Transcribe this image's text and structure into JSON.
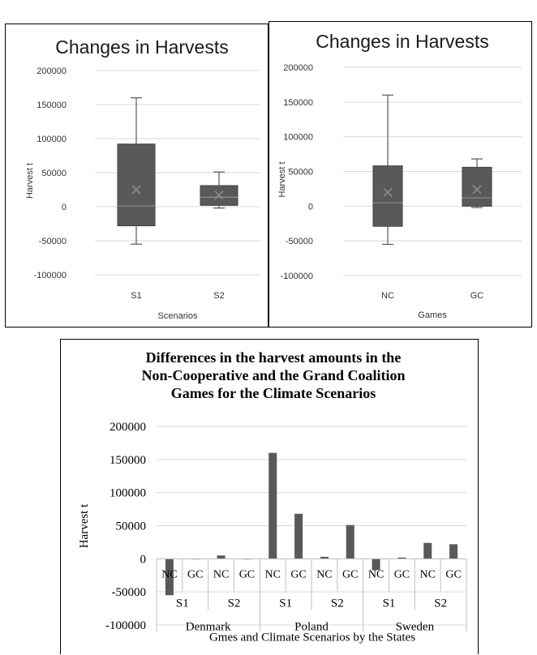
{
  "chart_data": [
    {
      "type": "box",
      "title": "Changes in Harvests",
      "xlabel": "Scenarios",
      "ylabel": "Harvest t",
      "ylim": [
        -100000,
        200000
      ],
      "yticks": [
        "200000",
        "150000",
        "100000",
        "50000",
        "0",
        "-50000",
        "-100000"
      ],
      "categories": [
        "S1",
        "S2"
      ],
      "boxes": [
        {
          "category": "S1",
          "min": -55000,
          "q1": -28000,
          "median": 1000,
          "q3": 92000,
          "max": 160000,
          "mean": 25000
        },
        {
          "category": "S2",
          "min": -2000,
          "q1": 2000,
          "median": 14000,
          "q3": 31000,
          "max": 51000,
          "mean": 17000
        }
      ]
    },
    {
      "type": "box",
      "title": "Changes in Harvests",
      "xlabel": "Games",
      "ylabel": "Harvest t",
      "ylim": [
        -100000,
        200000
      ],
      "yticks": [
        "200000",
        "150000",
        "100000",
        "50000",
        "0",
        "-50000",
        "-100000"
      ],
      "categories": [
        "NC",
        "GC"
      ],
      "boxes": [
        {
          "category": "NC",
          "min": -55000,
          "q1": -29000,
          "median": 5000,
          "q3": 58000,
          "max": 160000,
          "mean": 20000
        },
        {
          "category": "GC",
          "min": -2000,
          "q1": 0,
          "median": 12000,
          "q3": 56000,
          "max": 68000,
          "mean": 24000
        }
      ]
    },
    {
      "type": "bar",
      "title": [
        "Differences in the harvest amounts in the",
        "Non-Cooperative and the Grand Coalition",
        "Games for the Climate Scenarios"
      ],
      "xlabel": "Gmes and Climate Scenarios by the States",
      "ylabel": "Harvest t",
      "ylim": [
        -100000,
        200000
      ],
      "yticks": [
        "200000",
        "150000",
        "100000",
        "50000",
        "0",
        "-50000",
        "-100000"
      ],
      "states": [
        "Denmark",
        "Poland",
        "Sweden"
      ],
      "scenarios": [
        "S1",
        "S2"
      ],
      "games": [
        "NC",
        "GC"
      ],
      "categories": [
        "Denmark S1 NC",
        "Denmark S1 GC",
        "Denmark S2 NC",
        "Denmark S2 GC",
        "Poland S1 NC",
        "Poland S1 GC",
        "Poland S2 NC",
        "Poland S2 GC",
        "Sweden S1 NC",
        "Sweden S1 GC",
        "Sweden S2 NC",
        "Sweden S2 GC"
      ],
      "values": [
        -55000,
        0,
        5000,
        -1000,
        160000,
        68000,
        3000,
        51000,
        -17000,
        2000,
        24000,
        22000
      ],
      "color": "#595959"
    }
  ]
}
